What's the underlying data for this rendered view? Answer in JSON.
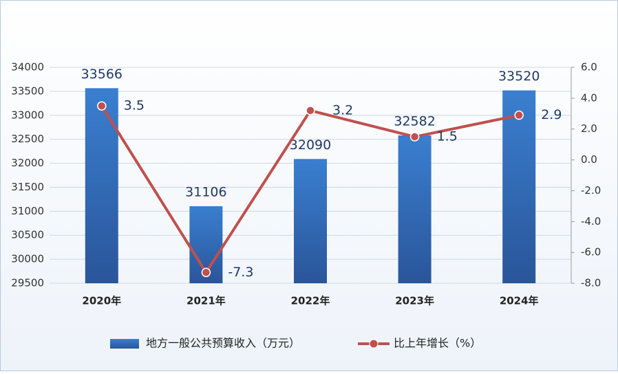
{
  "chart_data": {
    "type": "bar",
    "categories": [
      "2020年",
      "2021年",
      "2022年",
      "2023年",
      "2024年"
    ],
    "series": [
      {
        "name": "地方一般公共预算收入（万元）",
        "type": "bar",
        "color": "#2e6fc0",
        "values": [
          33566,
          31106,
          32090,
          32582,
          33520
        ]
      },
      {
        "name": "比上年增长（%）",
        "type": "line",
        "axis": "y2",
        "color": "#c0504d",
        "values": [
          3.5,
          -7.3,
          3.2,
          1.5,
          2.9
        ]
      }
    ],
    "ylim": [
      29500,
      34000
    ],
    "yticks": [
      29500,
      30000,
      30500,
      31000,
      31500,
      32000,
      32500,
      33000,
      33500,
      34000
    ],
    "y2lim": [
      -8,
      6
    ],
    "y2ticks": [
      {
        "value": -8,
        "label": "-8.0"
      },
      {
        "value": -6,
        "label": "-6.0"
      },
      {
        "value": -4,
        "label": "-4.0"
      },
      {
        "value": -2,
        "label": "-2.0"
      },
      {
        "value": 0,
        "label": "0.0"
      },
      {
        "value": 2,
        "label": "2.0"
      },
      {
        "value": 4,
        "label": "4.0"
      },
      {
        "value": 6,
        "label": "6.0"
      }
    ],
    "grid": true
  }
}
